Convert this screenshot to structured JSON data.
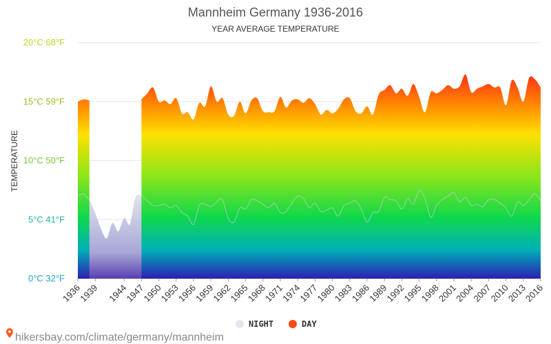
{
  "chart_data": {
    "type": "area",
    "title": "Mannheim Germany 1936-2016",
    "subtitle": "YEAR AVERAGE TEMPERATURE",
    "ylabel": "TEMPERATURE",
    "ylim": [
      0,
      20
    ],
    "y_ticks": [
      {
        "value": 0,
        "label": "0°C 32°F",
        "color": "#1ba3c6"
      },
      {
        "value": 5,
        "label": "5°C 41°F",
        "color": "#20b4a8"
      },
      {
        "value": 10,
        "label": "10°C 50°F",
        "color": "#7ec23b"
      },
      {
        "value": 15,
        "label": "15°C 59°F",
        "color": "#9fc01a"
      },
      {
        "value": 20,
        "label": "20°C 68°F",
        "color": "#c8d21f"
      }
    ],
    "x_ticks": [
      "1936",
      "1939",
      "1944",
      "1947",
      "1950",
      "1953",
      "1956",
      "1959",
      "1962",
      "1965",
      "1968",
      "1971",
      "1974",
      "1977",
      "1980",
      "1983",
      "1986",
      "1989",
      "1992",
      "1995",
      "1998",
      "2001",
      "2004",
      "2007",
      "2010",
      "2013",
      "2016"
    ],
    "grid": true,
    "legend_position": "bottom-center",
    "series": [
      {
        "name": "NIGHT",
        "color": "#e3e7ee",
        "x": [
          1936,
          1937,
          1938,
          1939,
          1940,
          1941,
          1942,
          1943,
          1944,
          1945,
          1946,
          1947,
          1948,
          1949,
          1950,
          1951,
          1952,
          1953,
          1954,
          1955,
          1956,
          1957,
          1958,
          1959,
          1960,
          1961,
          1962,
          1963,
          1964,
          1965,
          1966,
          1967,
          1968,
          1969,
          1970,
          1971,
          1972,
          1973,
          1974,
          1975,
          1976,
          1977,
          1978,
          1979,
          1980,
          1981,
          1982,
          1983,
          1984,
          1985,
          1986,
          1987,
          1988,
          1989,
          1990,
          1991,
          1992,
          1993,
          1994,
          1995,
          1996,
          1997,
          1998,
          1999,
          2000,
          2001,
          2002,
          2003,
          2004,
          2005,
          2006,
          2007,
          2008,
          2009,
          2010,
          2011,
          2012,
          2013,
          2014,
          2015,
          2016
        ],
        "values": [
          7.0,
          7.2,
          6.6,
          5.5,
          4.2,
          3.4,
          4.7,
          4.0,
          5.1,
          4.6,
          6.8,
          7.0,
          6.6,
          6.2,
          6.2,
          6.3,
          6.0,
          6.2,
          5.6,
          5.3,
          4.6,
          6.2,
          6.3,
          6.1,
          6.5,
          6.7,
          5.1,
          4.8,
          6.0,
          5.9,
          6.7,
          6.6,
          6.3,
          6.0,
          6.4,
          5.6,
          5.7,
          6.4,
          7.0,
          6.8,
          6.0,
          6.4,
          5.7,
          5.8,
          6.0,
          5.3,
          6.2,
          6.4,
          6.6,
          5.9,
          4.8,
          5.6,
          5.7,
          6.9,
          6.7,
          6.6,
          5.9,
          6.8,
          6.3,
          7.5,
          6.8,
          5.2,
          6.2,
          6.7,
          7.0,
          7.3,
          6.5,
          6.9,
          6.2,
          6.3,
          6.1,
          6.7,
          6.7,
          6.4,
          6.0,
          5.3,
          6.5,
          6.2,
          6.7,
          7.2,
          6.6
        ]
      },
      {
        "name": "DAY",
        "color": "#ff4a14",
        "x": [
          1936,
          1937,
          1938,
          1939,
          1940,
          1941,
          1942,
          1943,
          1944,
          1945,
          1946,
          1947,
          1948,
          1949,
          1950,
          1951,
          1952,
          1953,
          1954,
          1955,
          1956,
          1957,
          1958,
          1959,
          1960,
          1961,
          1962,
          1963,
          1964,
          1965,
          1966,
          1967,
          1968,
          1969,
          1970,
          1971,
          1972,
          1973,
          1974,
          1975,
          1976,
          1977,
          1978,
          1979,
          1980,
          1981,
          1982,
          1983,
          1984,
          1985,
          1986,
          1987,
          1988,
          1989,
          1990,
          1991,
          1992,
          1993,
          1994,
          1995,
          1996,
          1997,
          1998,
          1999,
          2000,
          2001,
          2002,
          2003,
          2004,
          2005,
          2006,
          2007,
          2008,
          2009,
          2010,
          2011,
          2012,
          2013,
          2014,
          2015,
          2016
        ],
        "values": [
          15.0,
          15.2,
          15.1,
          null,
          null,
          null,
          null,
          null,
          null,
          null,
          null,
          15.2,
          15.7,
          16.2,
          15.0,
          15.1,
          14.8,
          15.3,
          14.0,
          14.1,
          13.5,
          14.9,
          14.6,
          16.3,
          15.0,
          15.3,
          13.9,
          13.8,
          15.0,
          14.0,
          15.1,
          15.3,
          14.2,
          14.1,
          14.2,
          15.4,
          14.5,
          15.1,
          15.2,
          14.9,
          15.3,
          14.8,
          13.9,
          14.3,
          14.0,
          14.4,
          15.2,
          15.3,
          14.2,
          14.0,
          14.6,
          13.9,
          15.6,
          16.0,
          16.4,
          15.7,
          16.1,
          15.5,
          16.5,
          15.4,
          14.1,
          15.8,
          15.7,
          16.0,
          16.4,
          16.1,
          16.3,
          17.3,
          15.8,
          16.1,
          16.3,
          16.5,
          16.2,
          16.2,
          14.7,
          16.8,
          16.2,
          15.0,
          17.0,
          16.9,
          16.2
        ]
      }
    ]
  },
  "source_text": "hikersbay.com/climate/germany/mannheim"
}
